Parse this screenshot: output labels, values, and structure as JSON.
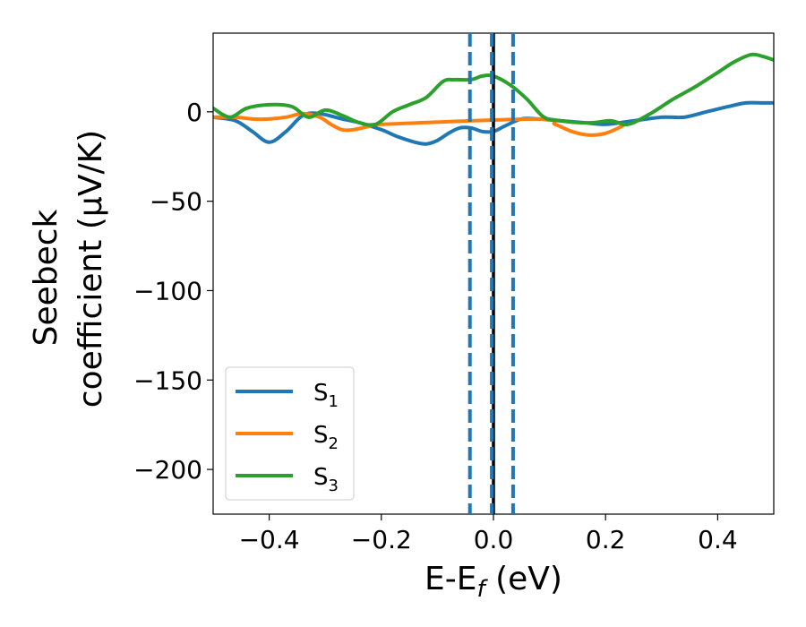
{
  "chart_data": {
    "type": "line",
    "xlabel": "E-E",
    "xlabel_sub": "f",
    "xlabel_unit": " (eV)",
    "ylabel_line1": "Seebeck",
    "ylabel_line2": "coefficient  (μV/K)",
    "xlim": [
      -0.5,
      0.5
    ],
    "ylim": [
      -225,
      44
    ],
    "xticks": [
      -0.4,
      -0.2,
      0.0,
      0.2,
      0.4
    ],
    "xtick_labels": [
      "−0.4",
      "−0.2",
      "0.0",
      "0.2",
      "0.4"
    ],
    "yticks": [
      0,
      -50,
      -100,
      -150,
      -200
    ],
    "ytick_labels": [
      "0",
      "−50",
      "−100",
      "−150",
      "−200"
    ],
    "grid": false,
    "legend_position": "lower-left",
    "reference_lines": [
      {
        "x": 0.0,
        "style": "solid",
        "color": "#000000"
      },
      {
        "x": -0.042,
        "style": "dashed",
        "color": "#1f77b4"
      },
      {
        "x": -0.003,
        "style": "dashed",
        "color": "#1f77b4"
      },
      {
        "x": 0.035,
        "style": "dashed",
        "color": "#1f77b4"
      }
    ],
    "series": [
      {
        "name": "S",
        "name_sub": "1",
        "color": "#1f77b4",
        "x": [
          -0.5,
          -0.46,
          -0.43,
          -0.4,
          -0.37,
          -0.34,
          -0.31,
          -0.27,
          -0.24,
          -0.2,
          -0.17,
          -0.14,
          -0.12,
          -0.1,
          -0.08,
          -0.06,
          -0.04,
          -0.02,
          0.0,
          0.02,
          0.05,
          0.08,
          0.12,
          0.16,
          0.2,
          0.25,
          0.3,
          0.34,
          0.38,
          0.42,
          0.45,
          0.48,
          0.5
        ],
        "y": [
          -3,
          -5,
          -11,
          -17,
          -11,
          -2,
          -1,
          -4,
          -6,
          -10,
          -14,
          -17,
          -18,
          -16,
          -12,
          -9,
          -9,
          -11,
          -11,
          -8,
          -4,
          -4,
          -5,
          -6,
          -7,
          -5,
          -3,
          -3,
          0,
          3,
          5,
          5,
          5
        ]
      },
      {
        "name": "S",
        "name_sub": "2",
        "color": "#ff7f0e",
        "x": [
          -0.5,
          -0.46,
          -0.43,
          -0.4,
          -0.37,
          -0.34,
          -0.31,
          -0.29,
          -0.27,
          -0.25,
          -0.22,
          -0.2,
          0.08,
          0.11,
          0.14,
          0.17,
          0.2,
          0.23
        ],
        "y": [
          -3,
          -3,
          -4,
          -4,
          -3,
          -1,
          -3,
          -7,
          -10,
          -10,
          -8,
          -7,
          -4,
          -7,
          -11,
          -13,
          -12,
          -8
        ]
      },
      {
        "name": "S",
        "name_sub": "3",
        "color": "#2ca02c",
        "x": [
          -0.5,
          -0.47,
          -0.44,
          -0.4,
          -0.36,
          -0.33,
          -0.3,
          -0.27,
          -0.24,
          -0.21,
          -0.18,
          -0.15,
          -0.12,
          -0.09,
          -0.07,
          -0.04,
          -0.02,
          0.0,
          0.03,
          0.06,
          0.09,
          0.12,
          0.15,
          0.18,
          0.21,
          0.24,
          0.28,
          0.32,
          0.36,
          0.4,
          0.43,
          0.46,
          0.48,
          0.5
        ],
        "y": [
          2,
          -3,
          2,
          4,
          3,
          -3,
          1,
          -2,
          -6,
          -7,
          0,
          4,
          8,
          17,
          18,
          18,
          20,
          20,
          15,
          7,
          -3,
          -5,
          -6,
          -6,
          -5,
          -7,
          -1,
          7,
          14,
          22,
          28,
          32,
          31,
          29
        ]
      }
    ]
  }
}
